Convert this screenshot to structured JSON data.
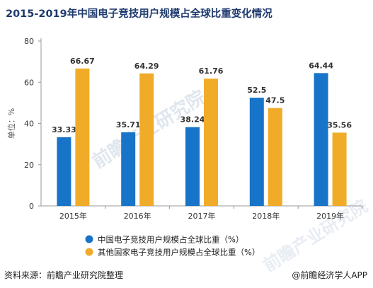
{
  "title": "2015-2019年中国电子竞技用户规模占全球比重变化情况",
  "source": "资料来源：前瞻产业研究院整理",
  "credit": "@前瞻经济学人APP",
  "watermark": "前瞻产业研究院",
  "colors": {
    "china": "#1874c8",
    "other": "#f0ac29",
    "title": "#1e3a6e"
  },
  "chart_data": {
    "type": "bar",
    "title": "2015-2019年中国电子竞技用户规模占全球比重变化情况",
    "ylabel": "单位：%",
    "ylim": [
      0,
      80
    ],
    "yticks": [
      0,
      20,
      40,
      60,
      80
    ],
    "categories": [
      "2015年",
      "2016年",
      "2017年",
      "2018年",
      "2019年"
    ],
    "series": [
      {
        "name": "中国电子竞技用户规模占全球比重（%）",
        "values": [
          33.33,
          35.71,
          38.24,
          52.5,
          64.44
        ],
        "labels": [
          "33.33",
          "35.71",
          "38.24",
          "52.5",
          "64.44"
        ]
      },
      {
        "name": "其他国家电子竞技用户规模占全球比重（%）",
        "values": [
          66.67,
          64.29,
          61.76,
          47.5,
          35.56
        ],
        "labels": [
          "66.67",
          "64.29",
          "61.76",
          "47.5",
          "35.56"
        ]
      }
    ],
    "grid": false,
    "legend_position": "bottom-left"
  }
}
